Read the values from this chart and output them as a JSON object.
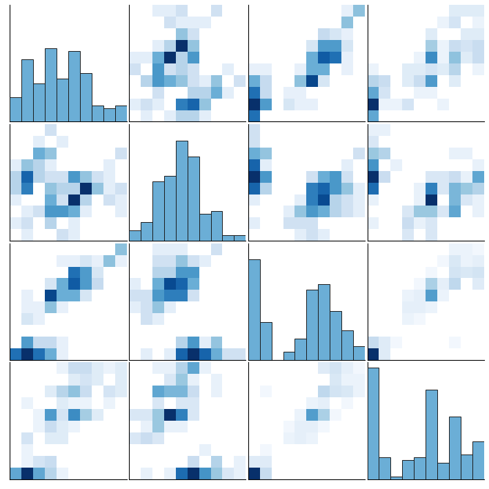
{
  "n_vars": 4,
  "seed": 42,
  "hist_color": "#6baed6",
  "hist_edgecolor": "#1a1a1a",
  "cmap": "Blues",
  "hist2d_bins": 10,
  "hist_bins": 10,
  "figsize": [
    7.09,
    7.09
  ],
  "dpi": 100,
  "background": "white",
  "iris_sepal_length": [
    5.1,
    4.9,
    4.7,
    4.6,
    5.0,
    5.4,
    4.6,
    5.0,
    4.4,
    4.9,
    5.4,
    4.8,
    4.8,
    4.3,
    5.8,
    5.7,
    5.4,
    5.1,
    5.7,
    5.1,
    5.4,
    5.1,
    4.6,
    5.1,
    4.8,
    5.0,
    5.0,
    5.2,
    5.2,
    4.7,
    4.8,
    5.4,
    5.2,
    5.5,
    4.9,
    5.0,
    5.5,
    4.9,
    4.4,
    5.1,
    5.0,
    4.5,
    4.4,
    5.0,
    5.1,
    4.8,
    5.1,
    4.6,
    5.3,
    5.0,
    7.0,
    6.4,
    6.9,
    5.5,
    6.5,
    5.7,
    6.3,
    4.9,
    6.6,
    5.2,
    5.0,
    5.9,
    6.0,
    6.1,
    5.6,
    6.7,
    5.6,
    5.8,
    6.2,
    5.6,
    5.9,
    6.1,
    6.3,
    6.1,
    6.4,
    6.6,
    6.8,
    6.7,
    6.0,
    5.7,
    5.5,
    5.5,
    5.8,
    6.0,
    5.4,
    6.0,
    6.7,
    6.3,
    5.6,
    5.5,
    5.5,
    6.1,
    5.8,
    5.0,
    5.6,
    5.7,
    5.7,
    6.2,
    5.1,
    5.7,
    6.3,
    5.8,
    7.1,
    6.3,
    6.5,
    7.6,
    4.9,
    7.3,
    6.7,
    7.2,
    6.5,
    6.4,
    6.8,
    5.7,
    5.8,
    6.4,
    6.5,
    7.7,
    7.7,
    6.0,
    6.9,
    5.6,
    7.7,
    6.3,
    6.7,
    7.2,
    6.2,
    6.1,
    6.4,
    7.2,
    7.4,
    7.9,
    6.4,
    6.3,
    6.1,
    7.7,
    6.3,
    6.4,
    6.0,
    6.9,
    6.7,
    6.9,
    5.8,
    6.8,
    6.7,
    6.7,
    6.3,
    6.5,
    6.2,
    5.9
  ],
  "iris_sepal_width": [
    3.5,
    3.0,
    3.2,
    3.1,
    3.6,
    3.9,
    3.4,
    3.4,
    2.9,
    3.1,
    3.7,
    3.4,
    3.0,
    3.0,
    4.0,
    4.4,
    3.9,
    3.5,
    3.8,
    3.8,
    3.4,
    3.7,
    3.6,
    3.3,
    3.4,
    3.0,
    3.4,
    3.5,
    3.4,
    3.2,
    3.1,
    3.4,
    4.1,
    4.2,
    3.1,
    3.2,
    3.5,
    3.6,
    3.0,
    3.4,
    3.5,
    2.3,
    3.2,
    3.5,
    3.8,
    3.0,
    3.8,
    3.2,
    3.7,
    3.3,
    3.2,
    3.2,
    3.1,
    2.3,
    2.8,
    2.8,
    3.3,
    2.4,
    2.9,
    2.7,
    2.0,
    3.0,
    2.2,
    2.9,
    2.9,
    3.1,
    3.0,
    2.7,
    2.2,
    2.5,
    3.2,
    2.8,
    2.5,
    2.8,
    2.9,
    3.0,
    2.8,
    3.0,
    2.9,
    2.6,
    2.4,
    2.4,
    2.7,
    2.7,
    3.0,
    3.4,
    3.1,
    2.3,
    3.0,
    2.5,
    2.6,
    3.0,
    2.6,
    2.3,
    2.7,
    3.0,
    2.9,
    2.9,
    2.5,
    2.8,
    3.3,
    2.7,
    3.0,
    2.9,
    3.0,
    3.0,
    2.5,
    2.9,
    2.5,
    3.6,
    3.2,
    2.7,
    3.0,
    2.5,
    2.8,
    3.2,
    3.0,
    3.8,
    2.6,
    2.2,
    3.2,
    2.8,
    2.8,
    2.7,
    3.3,
    3.2,
    2.8,
    3.0,
    2.8,
    3.0,
    2.8,
    3.8,
    2.8,
    2.8,
    2.6,
    3.0,
    3.4,
    3.1,
    3.0,
    3.1,
    3.1,
    3.1,
    2.7,
    3.2,
    3.3,
    3.0,
    2.5,
    3.0,
    3.4,
    3.0
  ],
  "iris_petal_length": [
    1.4,
    1.4,
    1.3,
    1.5,
    1.4,
    1.7,
    1.4,
    1.5,
    1.4,
    1.5,
    1.5,
    1.6,
    1.4,
    1.1,
    1.2,
    1.5,
    1.3,
    1.4,
    1.7,
    1.5,
    1.7,
    1.5,
    1.0,
    1.7,
    1.9,
    1.6,
    1.6,
    1.5,
    1.4,
    1.6,
    1.6,
    1.5,
    1.5,
    1.4,
    1.5,
    1.2,
    1.3,
    1.4,
    1.3,
    1.5,
    1.3,
    1.3,
    1.3,
    1.6,
    1.9,
    1.4,
    1.6,
    1.4,
    1.5,
    1.4,
    4.7,
    4.5,
    4.9,
    4.0,
    4.6,
    4.5,
    4.7,
    3.3,
    4.6,
    3.9,
    3.5,
    4.2,
    4.0,
    4.7,
    3.6,
    4.4,
    4.5,
    4.1,
    4.5,
    3.9,
    4.8,
    4.0,
    4.9,
    4.7,
    4.3,
    4.4,
    4.8,
    5.0,
    4.5,
    3.5,
    3.8,
    3.7,
    3.9,
    5.1,
    4.5,
    4.5,
    4.7,
    4.4,
    4.1,
    4.0,
    4.4,
    4.6,
    4.0,
    3.3,
    4.2,
    4.2,
    4.2,
    4.3,
    3.0,
    4.1,
    6.0,
    5.1,
    5.9,
    5.6,
    5.8,
    6.6,
    4.5,
    6.3,
    5.8,
    6.1,
    5.1,
    5.3,
    5.5,
    5.0,
    5.1,
    5.3,
    5.5,
    6.7,
    6.9,
    5.0,
    5.7,
    4.9,
    6.7,
    4.9,
    5.7,
    6.0,
    4.8,
    4.9,
    5.6,
    5.8,
    6.1,
    6.4,
    5.6,
    5.1,
    5.6,
    6.1,
    5.6,
    5.5,
    4.8,
    5.4,
    5.6,
    5.1,
    5.9,
    5.7,
    5.2,
    5.0,
    5.2,
    5.4,
    5.1,
    1.8
  ],
  "iris_petal_width": [
    0.2,
    0.2,
    0.2,
    0.2,
    0.2,
    0.4,
    0.3,
    0.2,
    0.2,
    0.1,
    0.2,
    0.2,
    0.1,
    0.1,
    0.2,
    0.4,
    0.4,
    0.3,
    0.3,
    0.3,
    0.2,
    0.4,
    0.2,
    0.5,
    0.2,
    0.2,
    0.4,
    0.2,
    0.2,
    0.2,
    0.2,
    0.4,
    0.1,
    0.2,
    0.2,
    0.2,
    0.2,
    0.1,
    0.2,
    0.3,
    0.3,
    0.3,
    0.2,
    0.6,
    0.4,
    0.3,
    0.2,
    0.2,
    0.2,
    0.2,
    1.4,
    1.5,
    1.5,
    1.3,
    1.5,
    1.3,
    1.6,
    1.0,
    1.3,
    1.4,
    1.0,
    1.5,
    1.0,
    1.4,
    1.3,
    1.4,
    1.5,
    1.0,
    1.5,
    1.1,
    1.8,
    1.3,
    1.5,
    1.2,
    1.3,
    1.4,
    1.4,
    1.7,
    1.5,
    1.0,
    1.1,
    1.0,
    1.2,
    1.6,
    1.5,
    1.6,
    1.5,
    1.3,
    1.3,
    1.3,
    1.2,
    1.4,
    1.2,
    1.0,
    1.3,
    1.2,
    1.3,
    1.3,
    1.1,
    1.3,
    2.5,
    1.9,
    2.1,
    1.8,
    2.2,
    2.1,
    1.7,
    1.8,
    1.8,
    2.5,
    2.0,
    1.9,
    2.1,
    2.0,
    2.4,
    2.3,
    1.8,
    2.2,
    2.3,
    1.5,
    2.3,
    2.0,
    2.0,
    1.8,
    2.1,
    1.8,
    1.8,
    1.8,
    2.1,
    1.6,
    1.9,
    2.0,
    2.2,
    1.5,
    1.4,
    2.3,
    2.4,
    1.8,
    1.8,
    2.1,
    2.4,
    2.3,
    1.9,
    2.3,
    2.5,
    2.3,
    1.9,
    2.0,
    2.3,
    1.8
  ]
}
